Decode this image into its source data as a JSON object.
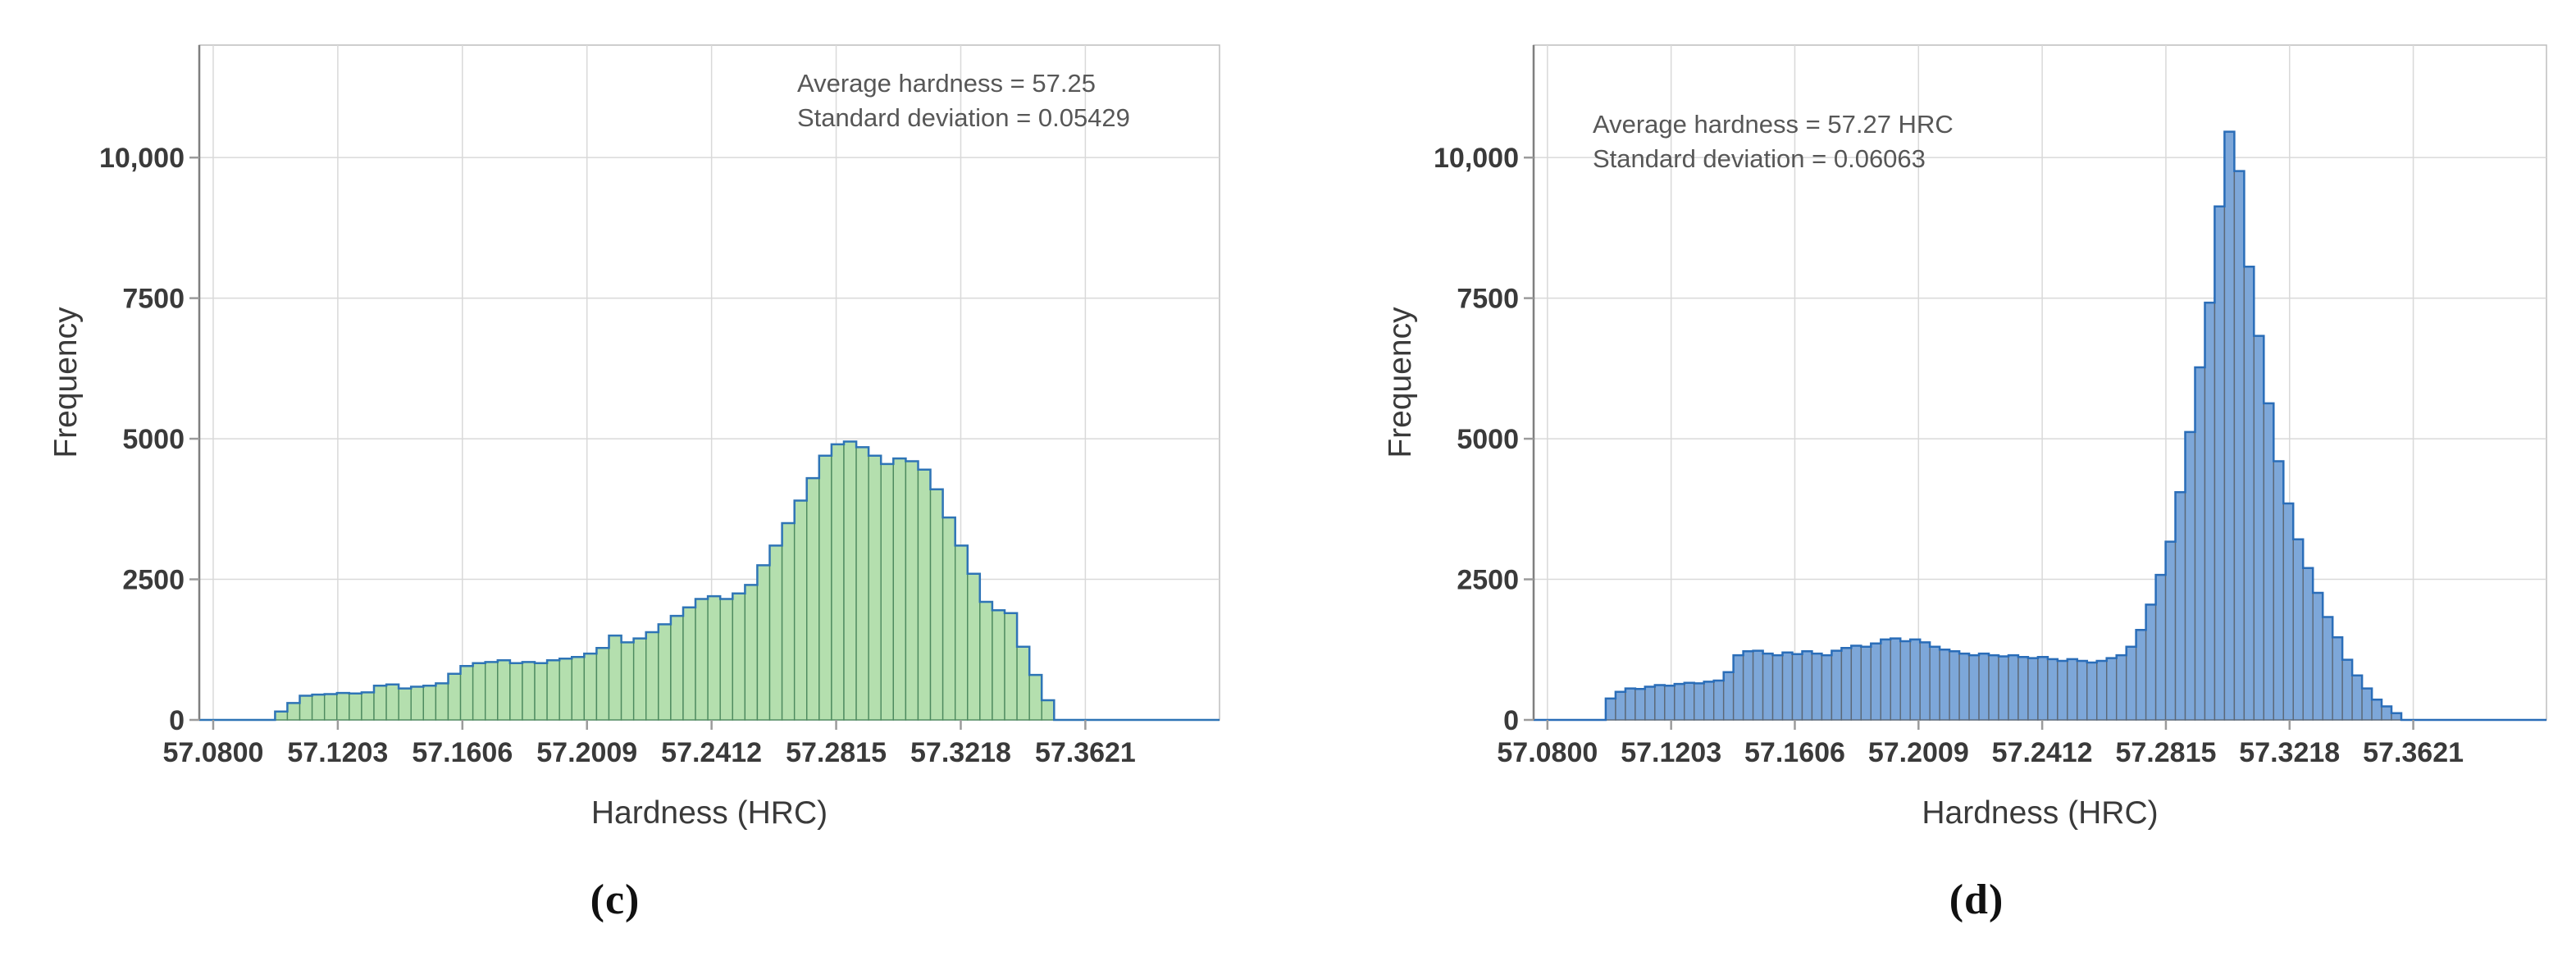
{
  "figure": {
    "background": "#ffffff",
    "text_color": "#3a3a3a",
    "annotation_color": "#575757",
    "grid_color": "#d9d9d9",
    "border_color": "#bdbdbd",
    "axis_color": "#7f7f7f",
    "tick_color": "#9b9b9b"
  },
  "chart_data": [
    {
      "type": "bar",
      "subtype": "histogram",
      "caption": "(c)",
      "xlabel": "Hardness (HRC)",
      "ylabel": "Frequency",
      "annotation_lines": [
        "Average hardness = 57.25",
        "Standard deviation = 0.05429"
      ],
      "average_hardness": 57.25,
      "standard_deviation": 0.05429,
      "x_tick_labels": [
        "57.0800",
        "57.1203",
        "57.1606",
        "57.2009",
        "57.2412",
        "57.2815",
        "57.3218",
        "57.3621"
      ],
      "x_tick_values": [
        57.08,
        57.1203,
        57.1606,
        57.2009,
        57.2412,
        57.2815,
        57.3218,
        57.3621
      ],
      "y_tick_labels": [
        "0",
        "2500",
        "5000",
        "7500",
        "10,000"
      ],
      "y_tick_values": [
        0,
        2500,
        5000,
        7500,
        10000
      ],
      "xlim": [
        57.0755,
        57.4055
      ],
      "ylim": [
        0,
        12000
      ],
      "grid": true,
      "bin_start": 57.1,
      "bin_width": 0.004,
      "heights": [
        150,
        300,
        430,
        450,
        460,
        480,
        470,
        490,
        610,
        630,
        560,
        590,
        610,
        650,
        820,
        960,
        1010,
        1030,
        1060,
        1010,
        1030,
        1010,
        1060,
        1090,
        1120,
        1180,
        1280,
        1500,
        1380,
        1450,
        1560,
        1700,
        1850,
        2000,
        2150,
        2200,
        2150,
        2250,
        2400,
        2750,
        3100,
        3500,
        3900,
        4300,
        4700,
        4900,
        4950,
        4850,
        4700,
        4550,
        4650,
        4600,
        4450,
        4100,
        3600,
        3100,
        2600,
        2100,
        1950,
        1900,
        1300,
        800,
        350
      ],
      "bar_fill": "#b4dfae",
      "bar_edge": "#4d8a5f",
      "outline_color": "#2e74b6"
    },
    {
      "type": "bar",
      "subtype": "histogram",
      "caption": "(d)",
      "xlabel": "Hardness (HRC)",
      "ylabel": "Frequency",
      "annotation_lines": [
        "Average hardness = 57.27 HRC",
        "Standard deviation = 0.06063"
      ],
      "average_hardness": 57.27,
      "standard_deviation": 0.06063,
      "x_tick_labels": [
        "57.0800",
        "57.1203",
        "57.1606",
        "57.2009",
        "57.2412",
        "57.2815",
        "57.3218",
        "57.3621"
      ],
      "x_tick_values": [
        57.08,
        57.1203,
        57.1606,
        57.2009,
        57.2412,
        57.2815,
        57.3218,
        57.3621
      ],
      "y_tick_labels": [
        "0",
        "2500",
        "5000",
        "7500",
        "10,000"
      ],
      "y_tick_values": [
        0,
        2500,
        5000,
        7500,
        10000
      ],
      "xlim": [
        57.0755,
        57.4055
      ],
      "ylim": [
        0,
        12000
      ],
      "grid": true,
      "bin_start": 57.099,
      "bin_width": 0.0032,
      "heights": [
        380,
        500,
        560,
        550,
        590,
        620,
        610,
        640,
        660,
        650,
        680,
        700,
        850,
        1150,
        1220,
        1230,
        1180,
        1150,
        1200,
        1170,
        1220,
        1180,
        1150,
        1230,
        1280,
        1320,
        1300,
        1360,
        1430,
        1450,
        1400,
        1430,
        1380,
        1300,
        1250,
        1220,
        1180,
        1150,
        1180,
        1150,
        1130,
        1150,
        1120,
        1100,
        1120,
        1080,
        1050,
        1080,
        1050,
        1020,
        1050,
        1100,
        1150,
        1300,
        1600,
        2050,
        2580,
        3170,
        4050,
        5120,
        6270,
        7420,
        9130,
        10460,
        9760,
        8060,
        6830,
        5630,
        4600,
        3850,
        3210,
        2700,
        2260,
        1830,
        1470,
        1070,
        790,
        560,
        360,
        240,
        120
      ],
      "bar_fill": "#7da7d9",
      "bar_edge": "#5b6877",
      "outline_color": "#2a6db8"
    }
  ]
}
